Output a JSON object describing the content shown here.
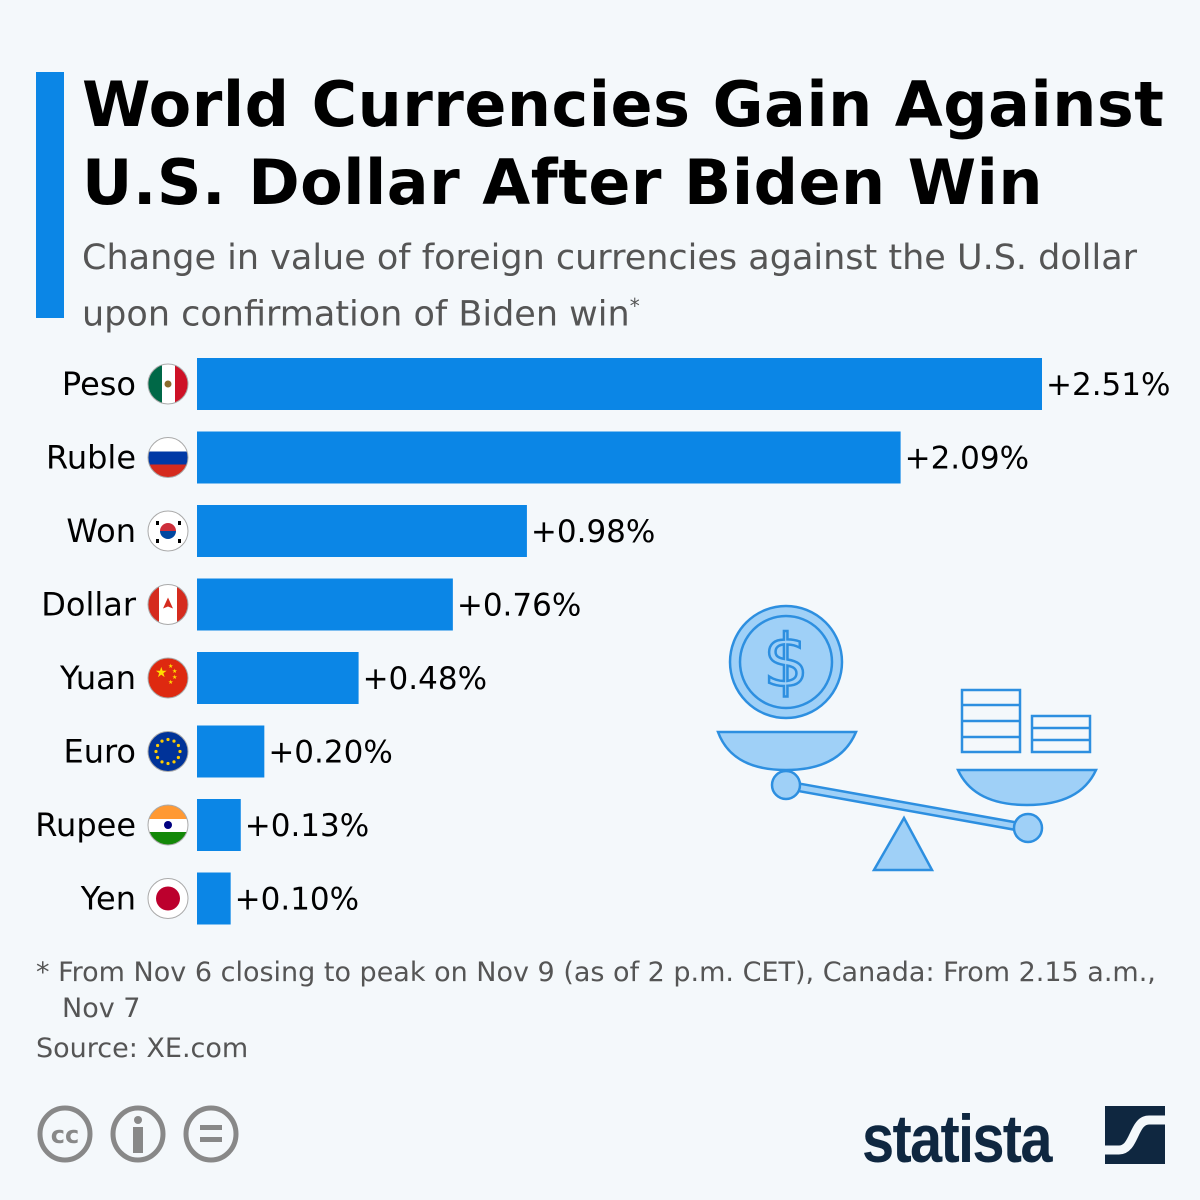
{
  "header": {
    "title": "World Currencies Gain Against U.S. Dollar After Biden Win",
    "subtitle": "Change in value of foreign currencies against the U.S. dollar upon confirmation of Biden win",
    "subtitle_mark": "*"
  },
  "chart_data": {
    "type": "bar",
    "orientation": "horizontal",
    "categories": [
      "Peso",
      "Ruble",
      "Won",
      "Dollar",
      "Yuan",
      "Euro",
      "Rupee",
      "Yen"
    ],
    "flags": [
      "mexico",
      "russia",
      "south-korea",
      "canada",
      "china",
      "eu",
      "india",
      "japan"
    ],
    "values": [
      2.51,
      2.09,
      0.98,
      0.76,
      0.48,
      0.2,
      0.13,
      0.1
    ],
    "data_labels": [
      "+2.51%",
      "+2.09%",
      "+0.98%",
      "+0.76%",
      "+0.48%",
      "+0.20%",
      "+0.13%",
      "+0.10%"
    ],
    "unit": "%",
    "xlim": [
      0,
      2.51
    ],
    "grid": false,
    "bar_color": "#0b86e6"
  },
  "footer": {
    "footnote": "* From Nov 6 closing to peak on Nov 9 (as of 2 p.m. CET), Canada: From 2.15 a.m., Nov 7",
    "source": "Source: XE.com",
    "brand": "statista",
    "license_icons": [
      "cc-icon",
      "attribution-icon",
      "no-derivatives-icon"
    ]
  },
  "colors": {
    "accent": "#0b86e6",
    "brand": "#0f2740",
    "illustration": "#9fd0f7"
  }
}
